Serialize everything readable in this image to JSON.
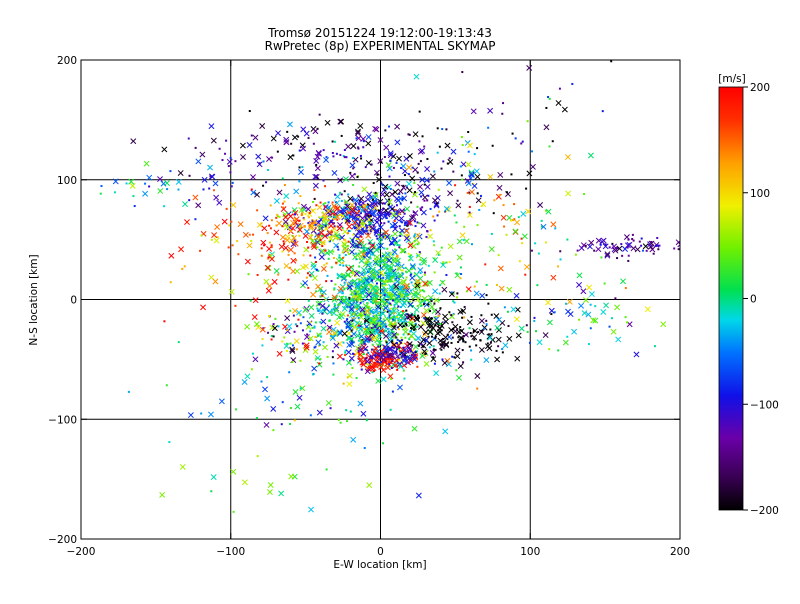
{
  "chart_data": {
    "type": "scatter",
    "title": "Tromsø 20151224 19:12:00-19:13:43",
    "subtitle": "RwPretec (8p) EXPERIMENTAL SKYMAP",
    "xlabel": "E-W location [km]",
    "ylabel": "N-S location [km]",
    "xlim": [
      -200,
      200
    ],
    "ylim": [
      -200,
      200
    ],
    "x_ticks": [
      -200,
      -100,
      0,
      100,
      200
    ],
    "y_ticks": [
      -200,
      -100,
      0,
      100,
      200
    ],
    "grid": true,
    "colorbar": {
      "label": "[m/s]",
      "range": [
        -200,
        200
      ],
      "ticks": [
        200,
        100,
        0,
        -100,
        -200
      ],
      "colormap": "rainbow-black-to-red"
    },
    "marker_types": [
      "x",
      "dot"
    ],
    "clusters": [
      {
        "cx": 0,
        "cy": 5,
        "sx": 20,
        "sy": 25,
        "n": 900,
        "vmean": 5,
        "vsd": 40
      },
      {
        "cx": -10,
        "cy": 65,
        "sx": 18,
        "sy": 12,
        "n": 260,
        "vmean": -100,
        "vsd": 25
      },
      {
        "cx": -40,
        "cy": 60,
        "sx": 20,
        "sy": 15,
        "n": 200,
        "vmean": 90,
        "vsd": 70
      },
      {
        "cx": 10,
        "cy": 100,
        "sx": 40,
        "sy": 20,
        "n": 220,
        "vmean": -130,
        "vsd": 80
      },
      {
        "cx": -20,
        "cy": -25,
        "sx": 30,
        "sy": 20,
        "n": 320,
        "vmean": 0,
        "vsd": 110
      },
      {
        "cx": 45,
        "cy": -25,
        "sx": 25,
        "sy": 15,
        "n": 180,
        "vmean": -200,
        "vsd": 20
      },
      {
        "cx": 0,
        "cy": -50,
        "sx": 12,
        "sy": 5,
        "n": 90,
        "vmean": 190,
        "vsd": 15
      },
      {
        "cx": 5,
        "cy": -45,
        "sx": 15,
        "sy": 8,
        "n": 80,
        "vmean": -110,
        "vsd": 20
      },
      {
        "cx": 168,
        "cy": 44,
        "sx": 20,
        "sy": 4,
        "n": 70,
        "vmean": -140,
        "vsd": 30
      },
      {
        "cx": -55,
        "cy": 130,
        "sx": 40,
        "sy": 10,
        "n": 80,
        "vmean": -150,
        "vsd": 40
      },
      {
        "cx": -75,
        "cy": 45,
        "sx": 30,
        "sy": 20,
        "n": 120,
        "vmean": 160,
        "vsd": 50
      },
      {
        "cx": 60,
        "cy": 60,
        "sx": 40,
        "sy": 30,
        "n": 120,
        "vmean": 60,
        "vsd": 90
      },
      {
        "cx": 120,
        "cy": -15,
        "sx": 40,
        "sy": 20,
        "n": 80,
        "vmean": -10,
        "vsd": 60
      },
      {
        "cx": -150,
        "cy": 90,
        "sx": 20,
        "sy": 10,
        "n": 25,
        "vmean": -40,
        "vsd": 40
      },
      {
        "cx": -60,
        "cy": -90,
        "sx": 50,
        "sy": 30,
        "n": 60,
        "vmean": -20,
        "vsd": 60
      },
      {
        "cx": -90,
        "cy": -160,
        "sx": 25,
        "sy": 20,
        "n": 12,
        "vmean": 20,
        "vsd": 40
      },
      {
        "cx": 90,
        "cy": 160,
        "sx": 40,
        "sy": 25,
        "n": 30,
        "vmean": -120,
        "vsd": 80
      },
      {
        "cx": -110,
        "cy": 100,
        "sx": 15,
        "sy": 10,
        "n": 20,
        "vmean": -110,
        "vsd": 30
      }
    ]
  }
}
